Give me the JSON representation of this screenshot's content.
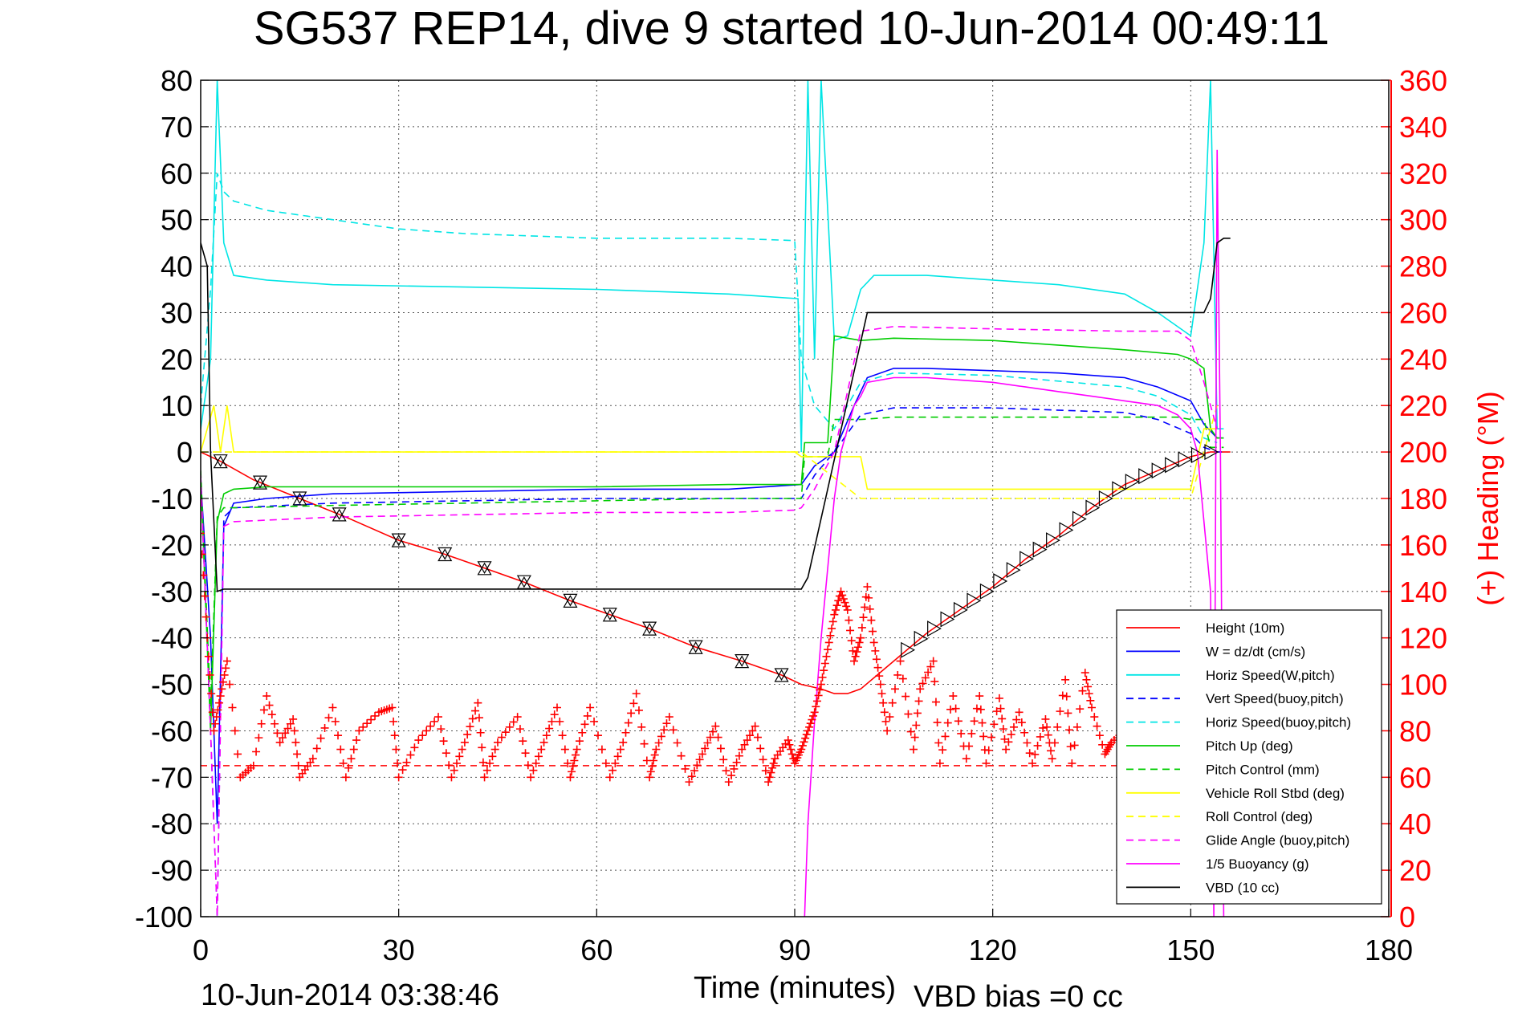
{
  "chart_data": {
    "type": "line",
    "title": "SG537 REP14, dive 9 started 10-Jun-2014 00:49:11",
    "xlabel": "Time (minutes)",
    "ylabel": "",
    "y2label": "(+) Heading (°M)",
    "footer_left": "10-Jun-2014 03:38:46",
    "footer_right": "VBD bias =0 cc",
    "xlim": [
      0,
      180
    ],
    "ylim": [
      -100,
      80
    ],
    "y2lim": [
      0,
      360
    ],
    "xticks": [
      "0",
      "30",
      "60",
      "90",
      "120",
      "150",
      "180"
    ],
    "yticks": [
      "80",
      "70",
      "60",
      "50",
      "40",
      "30",
      "20",
      "10",
      "0",
      "-10",
      "-20",
      "-30",
      "-40",
      "-50",
      "-60",
      "-70",
      "-80",
      "-90",
      "-100"
    ],
    "y2ticks": [
      "360",
      "340",
      "320",
      "300",
      "280",
      "260",
      "240",
      "220",
      "200",
      "180",
      "160",
      "140",
      "120",
      "100",
      "80",
      "60",
      "40",
      "20",
      "0"
    ],
    "grid": true,
    "legend_position": "lower-right",
    "series": [
      {
        "name": "Height (10m)",
        "color": "#ff0000",
        "style": "solid",
        "x": [
          0,
          3,
          8,
          15,
          22,
          30,
          37,
          43,
          49,
          56,
          62,
          68,
          75,
          82,
          88,
          91,
          94,
          96,
          98,
          100,
          105,
          110,
          115,
          120,
          125,
          130,
          135,
          140,
          145,
          150,
          153,
          156
        ],
        "y": [
          0,
          -2,
          -6,
          -10,
          -14,
          -19,
          -22,
          -25,
          -28,
          -32,
          -35,
          -38,
          -42,
          -45,
          -48,
          -50,
          -51,
          -52,
          -52,
          -51,
          -45,
          -39,
          -34,
          -29,
          -23,
          -18,
          -12,
          -7,
          -4,
          -1,
          0,
          0
        ]
      },
      {
        "name": "W = dz/dt (cm/s)",
        "color": "#0000ff",
        "style": "solid",
        "x": [
          0,
          1.5,
          2.5,
          3.5,
          5,
          10,
          20,
          40,
          60,
          80,
          91,
          93,
          96,
          99,
          101,
          105,
          110,
          120,
          130,
          140,
          145,
          150,
          152,
          154,
          155
        ],
        "y": [
          -6,
          -40,
          -80,
          -16,
          -11,
          -10,
          -9,
          -8.5,
          -8,
          -8,
          -7,
          -3,
          0,
          10,
          16,
          18,
          18,
          17.5,
          17,
          16,
          14,
          11,
          6,
          3,
          3
        ]
      },
      {
        "name": "Horiz Speed(W,pitch)",
        "color": "#00e5e5",
        "style": "solid",
        "x": [
          0,
          1.5,
          2.5,
          3.5,
          5,
          10,
          20,
          40,
          60,
          80,
          90.5,
          91,
          92,
          93,
          94,
          96,
          98,
          100,
          102,
          110,
          120,
          130,
          140,
          145,
          150,
          152,
          153,
          154,
          155
        ],
        "y": [
          5,
          20,
          80,
          45,
          38,
          37,
          36,
          35.5,
          35,
          34,
          33,
          0,
          80,
          20,
          80,
          24,
          25,
          35,
          38,
          38,
          37,
          36,
          34,
          30,
          25,
          45,
          80,
          5,
          5
        ]
      },
      {
        "name": "Vert Speed(buoy,pitch)",
        "color": "#0000ff",
        "style": "dashed",
        "x": [
          0,
          1.5,
          2.5,
          3.5,
          5,
          20,
          40,
          60,
          80,
          91,
          93,
          96,
          100,
          105,
          120,
          140,
          145,
          150,
          152,
          154,
          155
        ],
        "y": [
          -5,
          -60,
          -100,
          -14,
          -12,
          -11,
          -10.5,
          -10,
          -10,
          -10,
          -5,
          0,
          8,
          9.5,
          9.5,
          8.5,
          7,
          4,
          1,
          0,
          0
        ]
      },
      {
        "name": "Horiz Speed(buoy,pitch)",
        "color": "#00e5e5",
        "style": "dashed",
        "x": [
          0,
          1.5,
          2.5,
          3.5,
          5,
          10,
          20,
          30,
          40,
          50,
          60,
          70,
          80,
          90,
          91,
          93,
          96,
          100,
          105,
          120,
          140,
          145,
          150,
          152,
          154
        ],
        "y": [
          10,
          35,
          60,
          56,
          54,
          52,
          50,
          48,
          47,
          46.5,
          46,
          46,
          46,
          45.5,
          20,
          10,
          5,
          15,
          17,
          16.5,
          14,
          12,
          8,
          3,
          2
        ]
      },
      {
        "name": "Pitch Up (deg)",
        "color": "#00cc00",
        "style": "solid",
        "x": [
          0,
          1.5,
          2.5,
          3.5,
          5,
          10,
          20,
          40,
          60,
          80,
          91,
          91.5,
          95,
          96,
          100,
          105,
          120,
          140,
          148,
          150,
          152,
          153,
          154,
          155
        ],
        "y": [
          -5,
          -60,
          -15,
          -9,
          -8,
          -7.5,
          -7.5,
          -7.5,
          -7.5,
          -7,
          -7,
          2,
          2,
          25,
          24,
          24.5,
          24,
          22,
          21,
          20,
          18,
          5,
          3,
          3
        ]
      },
      {
        "name": "Pitch Control (mm)",
        "color": "#00cc00",
        "style": "dashed",
        "x": [
          0,
          1.5,
          2.5,
          3.5,
          5,
          20,
          40,
          60,
          80,
          91,
          91.5,
          95,
          96,
          100,
          105,
          120,
          140,
          148,
          150,
          152,
          153,
          154,
          155
        ],
        "y": [
          -4,
          -55,
          -14,
          -12,
          -12,
          -11.5,
          -11,
          -10.5,
          -10,
          -10,
          -1,
          -1,
          7,
          7,
          7.5,
          7.5,
          7.5,
          7.5,
          7,
          7,
          1,
          1,
          1
        ]
      },
      {
        "name": "Vehicle Roll Stbd (deg)",
        "color": "#ffff00",
        "style": "solid",
        "x": [
          0,
          2,
          3,
          4,
          5,
          90,
          91,
          100,
          101,
          150,
          152,
          154
        ],
        "y": [
          0,
          10,
          0,
          10,
          0,
          0,
          -1,
          -1,
          -8,
          -8,
          5,
          5
        ]
      },
      {
        "name": "Roll Control (deg)",
        "color": "#ffff00",
        "style": "dashed",
        "x": [
          0,
          91,
          100,
          150,
          154
        ],
        "y": [
          0,
          0,
          -10,
          -10,
          10
        ]
      },
      {
        "name": "Glide Angle (buoy,pitch)",
        "color": "#ff00ff",
        "style": "dashed",
        "x": [
          0,
          1.5,
          2.5,
          3.5,
          5,
          20,
          40,
          60,
          80,
          90,
          91,
          93,
          96,
          100,
          105,
          120,
          140,
          148,
          150,
          152,
          154
        ],
        "y": [
          -5,
          -60,
          -100,
          -16,
          -15,
          -14,
          -13.5,
          -13,
          -13,
          -12.5,
          -12,
          -8,
          0,
          26,
          27,
          26.5,
          26,
          26,
          24,
          15,
          5
        ]
      },
      {
        "name": "1/5 Buoyancy (g)",
        "color": "#ff00ff",
        "style": "solid",
        "x": [
          91.5,
          92,
          93,
          94,
          95,
          96,
          97,
          98,
          99,
          100,
          101,
          105,
          110,
          115,
          120,
          125,
          130,
          135,
          140,
          145,
          148,
          150,
          151,
          152,
          153,
          153.5,
          154,
          154.5,
          155
        ],
        "y": [
          -100,
          -80,
          -58,
          -40,
          -25,
          -10,
          0,
          5,
          10,
          12,
          15,
          16,
          16,
          15.5,
          15,
          14,
          13,
          12,
          11,
          10,
          8,
          5,
          0,
          -15,
          -30,
          -100,
          65,
          0,
          -100
        ]
      },
      {
        "name": "VBD (10 cc)",
        "color": "#000000",
        "style": "solid",
        "x": [
          0,
          1,
          1.5,
          2.5,
          3.5,
          50,
          90,
          91,
          92,
          101,
          120,
          140,
          152,
          153,
          154,
          155,
          156
        ],
        "y": [
          45,
          40,
          0,
          -30,
          -29.5,
          -29.5,
          -29.5,
          -29.5,
          -27,
          30,
          30,
          30,
          30,
          33,
          45,
          46,
          46
        ]
      },
      {
        "name": "Heading",
        "color": "#ff0000",
        "style": "markers",
        "axis": "right",
        "x": [
          0,
          1,
          2,
          3,
          4,
          6,
          8,
          10,
          12,
          14,
          15,
          17,
          20,
          22,
          24,
          27,
          29,
          30,
          33,
          36,
          38,
          40,
          42,
          43,
          45,
          48,
          50,
          52,
          54,
          56,
          57,
          59,
          62,
          64,
          66,
          68,
          69,
          71,
          74,
          76,
          78,
          80,
          82,
          84,
          86,
          87,
          89,
          90,
          91,
          92,
          93,
          94,
          95,
          96,
          97,
          98,
          99,
          100,
          101,
          102,
          103,
          104,
          106,
          108,
          109,
          111,
          112,
          114,
          116,
          118,
          119,
          121,
          122,
          124,
          126,
          128,
          129,
          131,
          132,
          134,
          135,
          137,
          138,
          140,
          141
        ],
        "y": [
          165,
          120,
          80,
          95,
          110,
          60,
          65,
          95,
          75,
          85,
          60,
          68,
          90,
          60,
          80,
          88,
          90,
          60,
          76,
          86,
          60,
          75,
          92,
          60,
          75,
          86,
          60,
          75,
          90,
          60,
          72,
          90,
          60,
          75,
          96,
          60,
          72,
          86,
          58,
          70,
          82,
          58,
          72,
          82,
          58,
          68,
          76,
          66,
          72,
          80,
          88,
          100,
          115,
          130,
          140,
          132,
          110,
          120,
          142,
          118,
          100,
          80,
          110,
          72,
          98,
          110,
          66,
          95,
          68,
          95,
          66,
          94,
          72,
          88,
          66,
          85,
          68,
          102,
          66,
          105,
          90,
          70,
          75,
          80,
          85
        ]
      }
    ],
    "reference_lines": [
      {
        "axis": "right",
        "y": 65,
        "color": "#ff0000",
        "style": "dashed",
        "xrange": [
          0,
          141
        ]
      }
    ],
    "height_markers": {
      "down_x": [
        3,
        9,
        15,
        21,
        30,
        37,
        43,
        49,
        56,
        62,
        68,
        75,
        82,
        88
      ],
      "up_x": [
        107,
        109,
        111,
        113,
        115,
        117,
        119,
        121,
        123,
        125,
        127,
        129,
        131,
        133,
        135,
        137,
        139,
        141,
        143,
        145,
        147,
        149,
        151,
        153
      ]
    }
  }
}
